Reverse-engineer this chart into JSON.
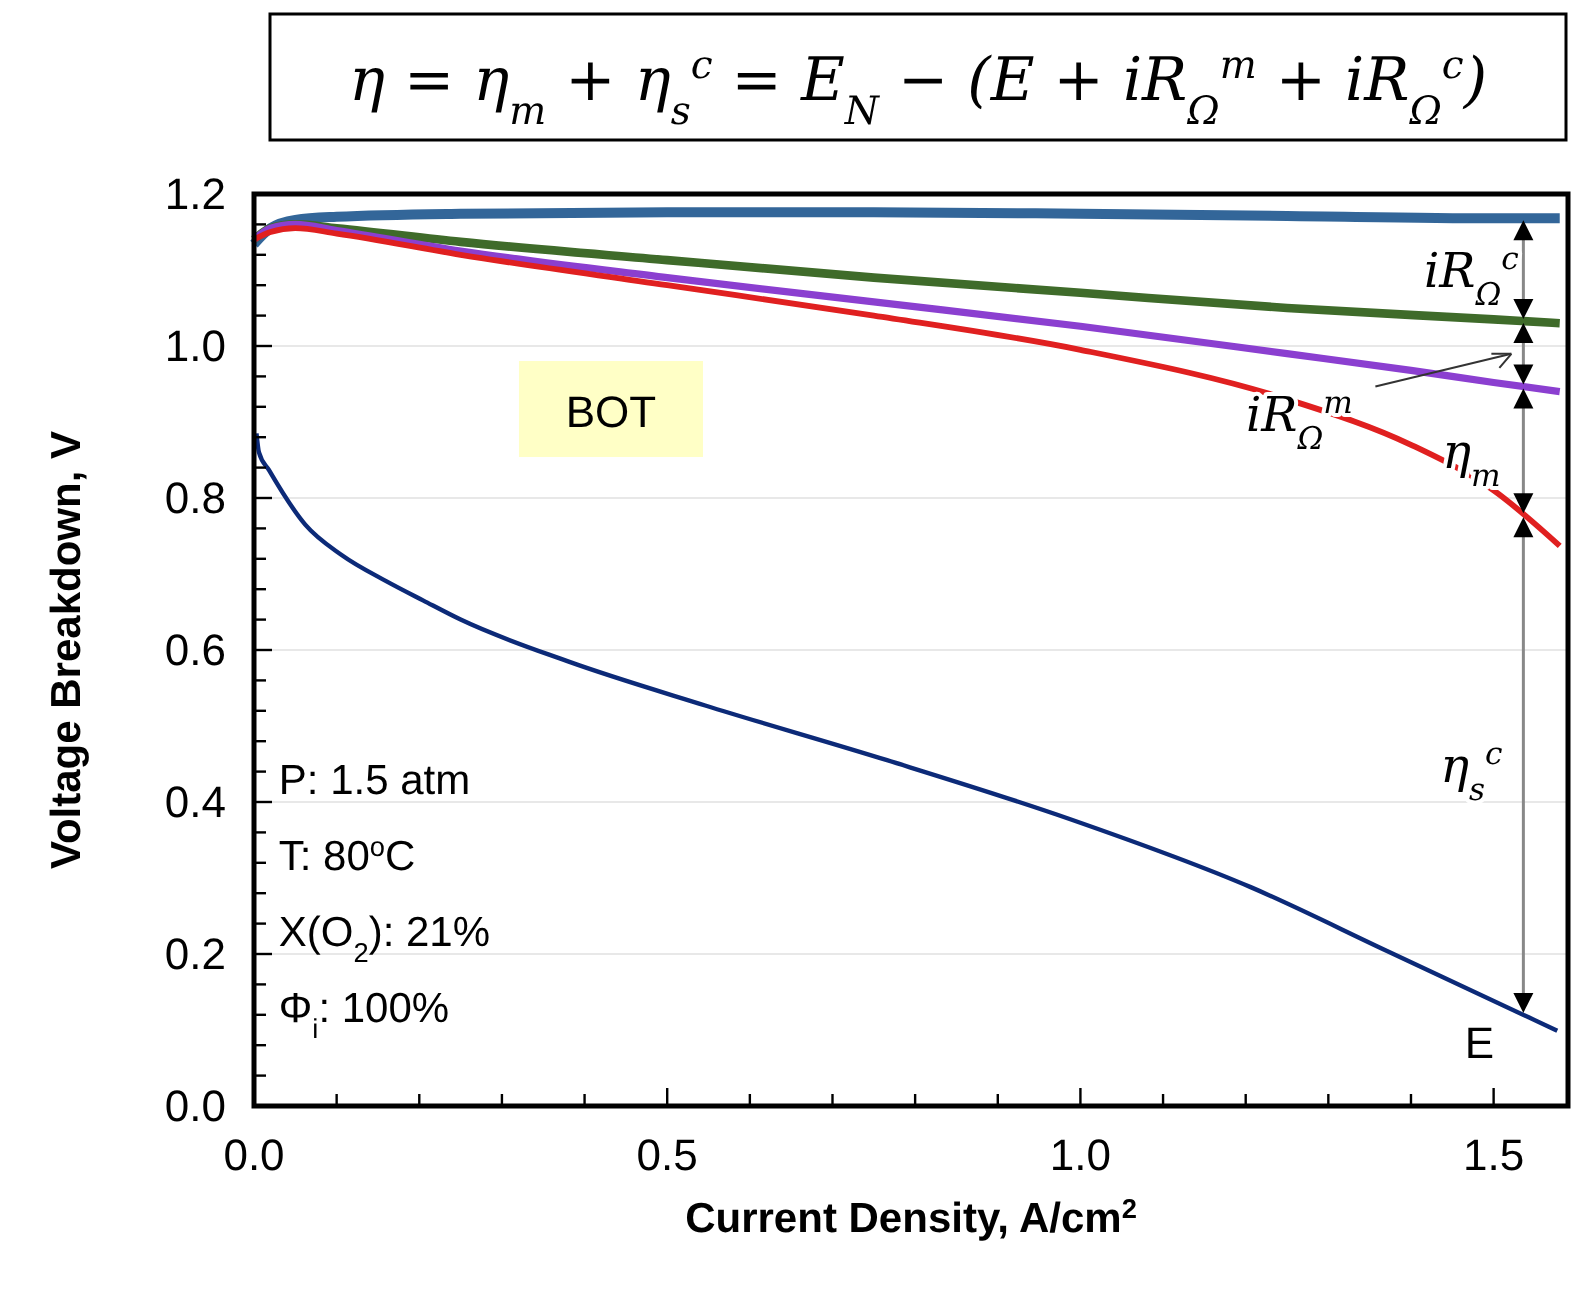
{
  "chart_data": {
    "type": "line",
    "title": "η = η$_{m}$ + η$_{s}$$^{c}$ = E$_{N}$ − (E + iR$_{Ω}$$^{m}$ + iR$_{Ω}$$^{c}$)",
    "xlabel": "Current Density, A/cm$^{2}$",
    "ylabel": "Voltage Breakdown, V",
    "xlim": [
      0,
      1.59
    ],
    "ylim": [
      0,
      1.2
    ],
    "xticks": [
      {
        "value": 0,
        "label": "0.0"
      },
      {
        "value": 0.1,
        "label": null
      },
      {
        "value": 0.2,
        "label": null
      },
      {
        "value": 0.3,
        "label": null
      },
      {
        "value": 0.4,
        "label": null
      },
      {
        "value": 0.5,
        "label": "0.5"
      },
      {
        "value": 0.6,
        "label": null
      },
      {
        "value": 0.7,
        "label": null
      },
      {
        "value": 0.8,
        "label": null
      },
      {
        "value": 0.9,
        "label": null
      },
      {
        "value": 1,
        "label": "1.0"
      },
      {
        "value": 1.1,
        "label": null
      },
      {
        "value": 1.2,
        "label": null
      },
      {
        "value": 1.3,
        "label": null
      },
      {
        "value": 1.4,
        "label": null
      },
      {
        "value": 1.5,
        "label": "1.5"
      }
    ],
    "yticks": [
      {
        "value": 0,
        "label": "0.0"
      },
      {
        "value": 0.04,
        "label": null
      },
      {
        "value": 0.08,
        "label": null
      },
      {
        "value": 0.12,
        "label": null
      },
      {
        "value": 0.16,
        "label": null
      },
      {
        "value": 0.2,
        "label": "0.2"
      },
      {
        "value": 0.24,
        "label": null
      },
      {
        "value": 0.28,
        "label": null
      },
      {
        "value": 0.32,
        "label": null
      },
      {
        "value": 0.36,
        "label": null
      },
      {
        "value": 0.4,
        "label": "0.4"
      },
      {
        "value": 0.44,
        "label": null
      },
      {
        "value": 0.48,
        "label": null
      },
      {
        "value": 0.52,
        "label": null
      },
      {
        "value": 0.56,
        "label": null
      },
      {
        "value": 0.6,
        "label": "0.6"
      },
      {
        "value": 0.64,
        "label": null
      },
      {
        "value": 0.68,
        "label": null
      },
      {
        "value": 0.72,
        "label": null
      },
      {
        "value": 0.76,
        "label": null
      },
      {
        "value": 0.8,
        "label": "0.8"
      },
      {
        "value": 0.84,
        "label": null
      },
      {
        "value": 0.88,
        "label": null
      },
      {
        "value": 0.92,
        "label": null
      },
      {
        "value": 0.96,
        "label": null
      },
      {
        "value": 1,
        "label": "1.0"
      },
      {
        "value": 1.04,
        "label": null
      },
      {
        "value": 1.08,
        "label": null
      },
      {
        "value": 1.12,
        "label": null
      },
      {
        "value": 1.16,
        "label": null
      },
      {
        "value": 1.2,
        "label": "1.2"
      }
    ],
    "grid": "y",
    "series": [
      {
        "color": "#336699",
        "x": [
          0,
          0.02,
          0.05,
          0.1,
          0.25,
          0.5,
          0.75,
          1.0,
          1.25,
          1.5,
          1.58
        ],
        "values": [
          1.134,
          1.155,
          1.166,
          1.17,
          1.174,
          1.176,
          1.176,
          1.174,
          1.171,
          1.168,
          1.168
        ]
      },
      {
        "color": "#3f6b2a",
        "x": [
          0,
          0.02,
          0.05,
          0.1,
          0.25,
          0.5,
          0.75,
          1.0,
          1.25,
          1.5,
          1.58
        ],
        "values": [
          1.14,
          1.155,
          1.16,
          1.155,
          1.137,
          1.113,
          1.09,
          1.07,
          1.05,
          1.035,
          1.03
        ]
      },
      {
        "color": "#8b3fd0",
        "x": [
          0,
          0.02,
          0.05,
          0.1,
          0.25,
          0.5,
          0.75,
          1.0,
          1.25,
          1.4,
          1.5,
          1.58
        ],
        "values": [
          1.14,
          1.155,
          1.16,
          1.152,
          1.125,
          1.09,
          1.058,
          1.026,
          0.99,
          0.968,
          0.952,
          0.94
        ]
      },
      {
        "color": "#e02020",
        "x": [
          0,
          0.02,
          0.05,
          0.1,
          0.25,
          0.5,
          0.75,
          1.0,
          1.25,
          1.4,
          1.5,
          1.58
        ],
        "values": [
          1.14,
          1.15,
          1.155,
          1.148,
          1.12,
          1.08,
          1.04,
          0.995,
          0.93,
          0.87,
          0.81,
          0.737
        ]
      },
      {
        "color": "#0c2a78",
        "x": [
          0.003,
          0.006,
          0.018,
          0.062,
          0.106,
          0.161,
          0.205,
          0.25,
          0.38,
          0.546,
          0.766,
          0.986,
          1.206,
          1.371,
          1.577
        ],
        "values": [
          0.885,
          0.86,
          0.837,
          0.765,
          0.725,
          0.69,
          0.665,
          0.64,
          0.585,
          0.527,
          0.455,
          0.378,
          0.288,
          0.204,
          0.099
        ]
      }
    ],
    "annotations": [
      "BOT",
      "P: 1.5 atm",
      "T: 80$^{o}$C",
      "X(O$_{2}$): 21%",
      "Φ$_{i}$: 100%",
      "E",
      "iR$_{Ω}$$^{c}$",
      "iR$_{Ω}$$^{m}$",
      "η$_{m}$",
      "η$_{s}$$^{c}$"
    ]
  }
}
